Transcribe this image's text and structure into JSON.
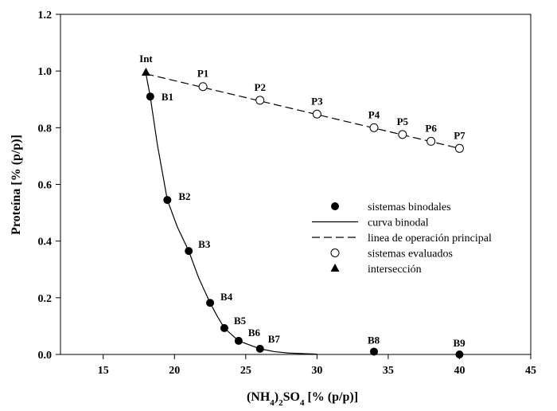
{
  "chart_data": {
    "type": "scatter",
    "xlabel_parts": [
      {
        "t": "(NH",
        "sub": false
      },
      {
        "t": "4",
        "sub": true
      },
      {
        "t": ")",
        "sub": false
      },
      {
        "t": "2",
        "sub": true
      },
      {
        "t": "SO",
        "sub": false
      },
      {
        "t": "4",
        "sub": true
      },
      {
        "t": " [% (p/p)]",
        "sub": false
      }
    ],
    "ylabel": "Proteína [% (p/p)]",
    "xlim": [
      12,
      45
    ],
    "ylim": [
      0,
      1.2
    ],
    "xticks": [
      15,
      20,
      25,
      30,
      35,
      40,
      45
    ],
    "yticks": [
      0.0,
      0.2,
      0.4,
      0.6,
      0.8,
      1.0,
      1.2
    ],
    "yticks_labels": [
      "0.0",
      "0.2",
      "0.4",
      "0.6",
      "0.8",
      "1.0",
      "1.2"
    ],
    "legend_position": "center-right",
    "series": [
      {
        "name": "sistemas binodales",
        "kind": "filled-circle",
        "points": [
          {
            "label": "B1",
            "x": 18.3,
            "y": 0.91
          },
          {
            "label": "B2",
            "x": 19.5,
            "y": 0.545
          },
          {
            "label": "B3",
            "x": 21.0,
            "y": 0.365
          },
          {
            "label": "B4",
            "x": 22.5,
            "y": 0.182
          },
          {
            "label": "B5",
            "x": 23.5,
            "y": 0.093
          },
          {
            "label": "B6",
            "x": 24.5,
            "y": 0.048
          },
          {
            "label": "B7",
            "x": 26.0,
            "y": 0.02
          },
          {
            "label": "B8",
            "x": 34.0,
            "y": 0.01
          },
          {
            "label": "B9",
            "x": 40.0,
            "y": 0.0
          }
        ]
      },
      {
        "name": "curva binodal",
        "kind": "solid-line",
        "points": [
          {
            "x": 18.0,
            "y": 0.99
          },
          {
            "x": 18.3,
            "y": 0.91
          },
          {
            "x": 18.8,
            "y": 0.74
          },
          {
            "x": 19.5,
            "y": 0.545
          },
          {
            "x": 20.2,
            "y": 0.45
          },
          {
            "x": 21.0,
            "y": 0.365
          },
          {
            "x": 21.7,
            "y": 0.27
          },
          {
            "x": 22.5,
            "y": 0.182
          },
          {
            "x": 23.0,
            "y": 0.135
          },
          {
            "x": 23.5,
            "y": 0.093
          },
          {
            "x": 24.5,
            "y": 0.048
          },
          {
            "x": 26.0,
            "y": 0.02
          },
          {
            "x": 27.0,
            "y": 0.01
          },
          {
            "x": 28.0,
            "y": 0.005
          },
          {
            "x": 30.0,
            "y": 0.001
          }
        ]
      },
      {
        "name": "linea de operación principal",
        "kind": "dashed-line",
        "points": [
          {
            "x": 18.0,
            "y": 0.99
          },
          {
            "x": 40.0,
            "y": 0.727
          }
        ]
      },
      {
        "name": "sistemas evaluados",
        "kind": "open-circle",
        "points": [
          {
            "label": "P1",
            "x": 22.0,
            "y": 0.945
          },
          {
            "label": "P2",
            "x": 26.0,
            "y": 0.897
          },
          {
            "label": "P3",
            "x": 30.0,
            "y": 0.848
          },
          {
            "label": "P4",
            "x": 34.0,
            "y": 0.8
          },
          {
            "label": "P5",
            "x": 36.0,
            "y": 0.776
          },
          {
            "label": "P6",
            "x": 38.0,
            "y": 0.752
          },
          {
            "label": "P7",
            "x": 40.0,
            "y": 0.727
          }
        ]
      },
      {
        "name": "intersección",
        "kind": "triangle",
        "points": [
          {
            "label": "Int",
            "x": 18.0,
            "y": 0.995
          }
        ]
      }
    ]
  }
}
